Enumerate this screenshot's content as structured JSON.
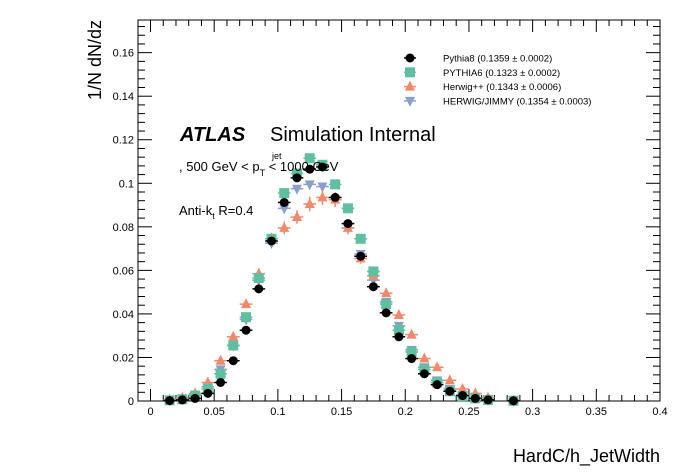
{
  "chart_data": {
    "type": "scatter",
    "xlabel": "HardC/h_JetWidth",
    "ylabel": "1/N dN/dz",
    "xlim": [
      0,
      0.4
    ],
    "ylim": [
      0,
      0.175
    ],
    "x_ticks": [
      "0",
      "0.05",
      "0.1",
      "0.15",
      "0.2",
      "0.25",
      "0.3",
      "0.35",
      "0.4"
    ],
    "y_ticks": [
      "0",
      "0.02",
      "0.04",
      "0.06",
      "0.08",
      "0.1",
      "0.12",
      "0.14",
      "0.16"
    ],
    "legend_position": "top-right",
    "atlas_label": "ATLAS",
    "atlas_sublabel": "Simulation Internal",
    "selection": {
      "prefix": ", 500 GeV < p",
      "sup": "jet",
      "sub": "T",
      "suffix": " < 1000 GeV"
    },
    "jet_algo": {
      "prefix": "Anti-k",
      "sub": "t",
      "suffix": " R=0.4"
    },
    "x": [
      0.015,
      0.025,
      0.035,
      0.045,
      0.055,
      0.065,
      0.075,
      0.085,
      0.095,
      0.105,
      0.115,
      0.125,
      0.135,
      0.145,
      0.155,
      0.165,
      0.175,
      0.185,
      0.195,
      0.205,
      0.215,
      0.225,
      0.235,
      0.245,
      0.255,
      0.265,
      0.285
    ],
    "series": [
      {
        "name": "Pythia8 (0.1359 ± 0.0002)",
        "marker": "circle",
        "color": "#000000",
        "values": [
          0.0002,
          0.0005,
          0.0012,
          0.0035,
          0.0085,
          0.0185,
          0.0325,
          0.0515,
          0.0735,
          0.0912,
          0.1025,
          0.1065,
          0.1075,
          0.0935,
          0.0815,
          0.0665,
          0.0525,
          0.0405,
          0.0295,
          0.0195,
          0.0125,
          0.0075,
          0.0045,
          0.0025,
          0.0012,
          0.0005,
          0.0001
        ]
      },
      {
        "name": "PYTHIA6 (0.1323 ± 0.0002)",
        "marker": "square",
        "color": "#5fbfa0",
        "values": [
          0.0003,
          0.0008,
          0.0025,
          0.0055,
          0.0125,
          0.0255,
          0.0385,
          0.0565,
          0.0745,
          0.0955,
          0.1045,
          0.1115,
          0.1085,
          0.0995,
          0.0885,
          0.0745,
          0.0595,
          0.0445,
          0.0325,
          0.0225,
          0.0145,
          0.0085,
          0.0045,
          0.0022,
          0.0012,
          0.0005,
          0.0001
        ]
      },
      {
        "name": "Herwig++ (0.1343 ± 0.0006)",
        "marker": "triangle-up",
        "color": "#f08a6a",
        "values": [
          0.0005,
          0.0015,
          0.0035,
          0.0085,
          0.0185,
          0.0295,
          0.0445,
          0.0585,
          0.0745,
          0.0795,
          0.0845,
          0.0905,
          0.0935,
          0.0925,
          0.0795,
          0.0655,
          0.0575,
          0.0495,
          0.0395,
          0.0305,
          0.0195,
          0.0155,
          0.0095,
          0.0055,
          0.0035,
          0.0015,
          0.0003
        ]
      },
      {
        "name": "HERWIG/JIMMY (0.1354 ± 0.0003)",
        "marker": "triangle-down",
        "color": "#8aa0cc",
        "values": [
          0.0004,
          0.0012,
          0.0028,
          0.0065,
          0.0145,
          0.0255,
          0.0375,
          0.0555,
          0.0725,
          0.0885,
          0.0975,
          0.0995,
          0.0985,
          0.0925,
          0.0795,
          0.0675,
          0.0555,
          0.0455,
          0.0345,
          0.0235,
          0.0155,
          0.0095,
          0.0055,
          0.0028,
          0.0014,
          0.0006,
          0.0001
        ]
      }
    ]
  }
}
